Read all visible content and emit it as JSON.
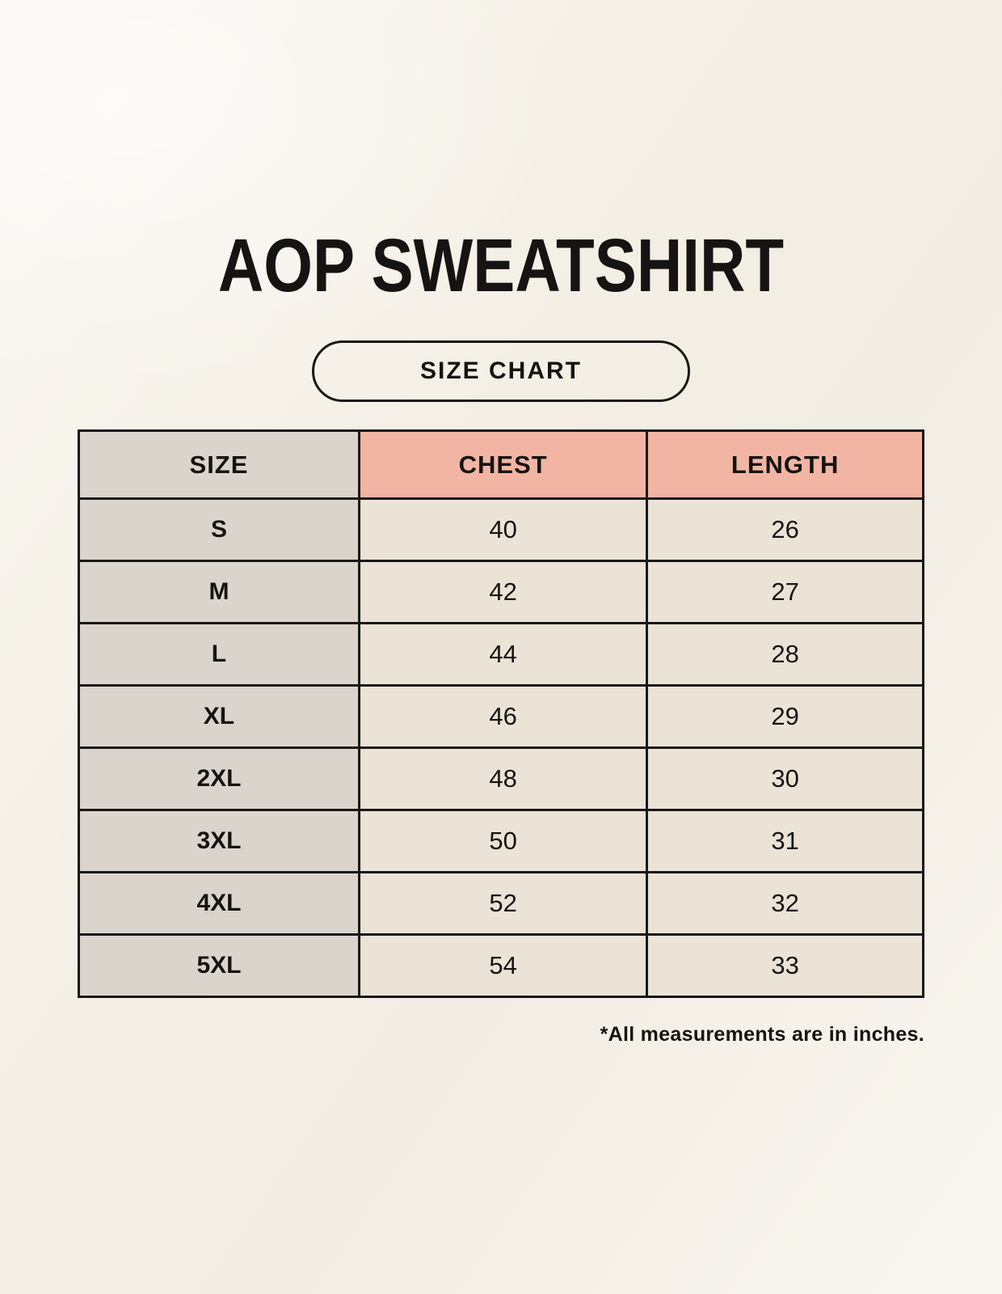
{
  "page": {
    "title": "AOP SWEATSHIRT",
    "badge_label": "SIZE CHART",
    "footnote": "*All measurements are in inches."
  },
  "colors": {
    "background": "#f6f2e9",
    "header_accent": "#f2b5a4",
    "size_column": "#dbd4cd",
    "data_cell": "#eae3d6",
    "border": "#1a1815",
    "text": "#161412"
  },
  "chart_data": {
    "type": "table",
    "title": "AOP SWEATSHIRT",
    "subtitle": "SIZE CHART",
    "columns": [
      "SIZE",
      "CHEST",
      "LENGTH"
    ],
    "rows": [
      {
        "size": "S",
        "chest": "40",
        "length": "26"
      },
      {
        "size": "M",
        "chest": "42",
        "length": "27"
      },
      {
        "size": "L",
        "chest": "44",
        "length": "28"
      },
      {
        "size": "XL",
        "chest": "46",
        "length": "29"
      },
      {
        "size": "2XL",
        "chest": "48",
        "length": "30"
      },
      {
        "size": "3XL",
        "chest": "50",
        "length": "31"
      },
      {
        "size": "4XL",
        "chest": "52",
        "length": "32"
      },
      {
        "size": "5XL",
        "chest": "54",
        "length": "33"
      }
    ],
    "footnote": "*All measurements are in inches."
  }
}
